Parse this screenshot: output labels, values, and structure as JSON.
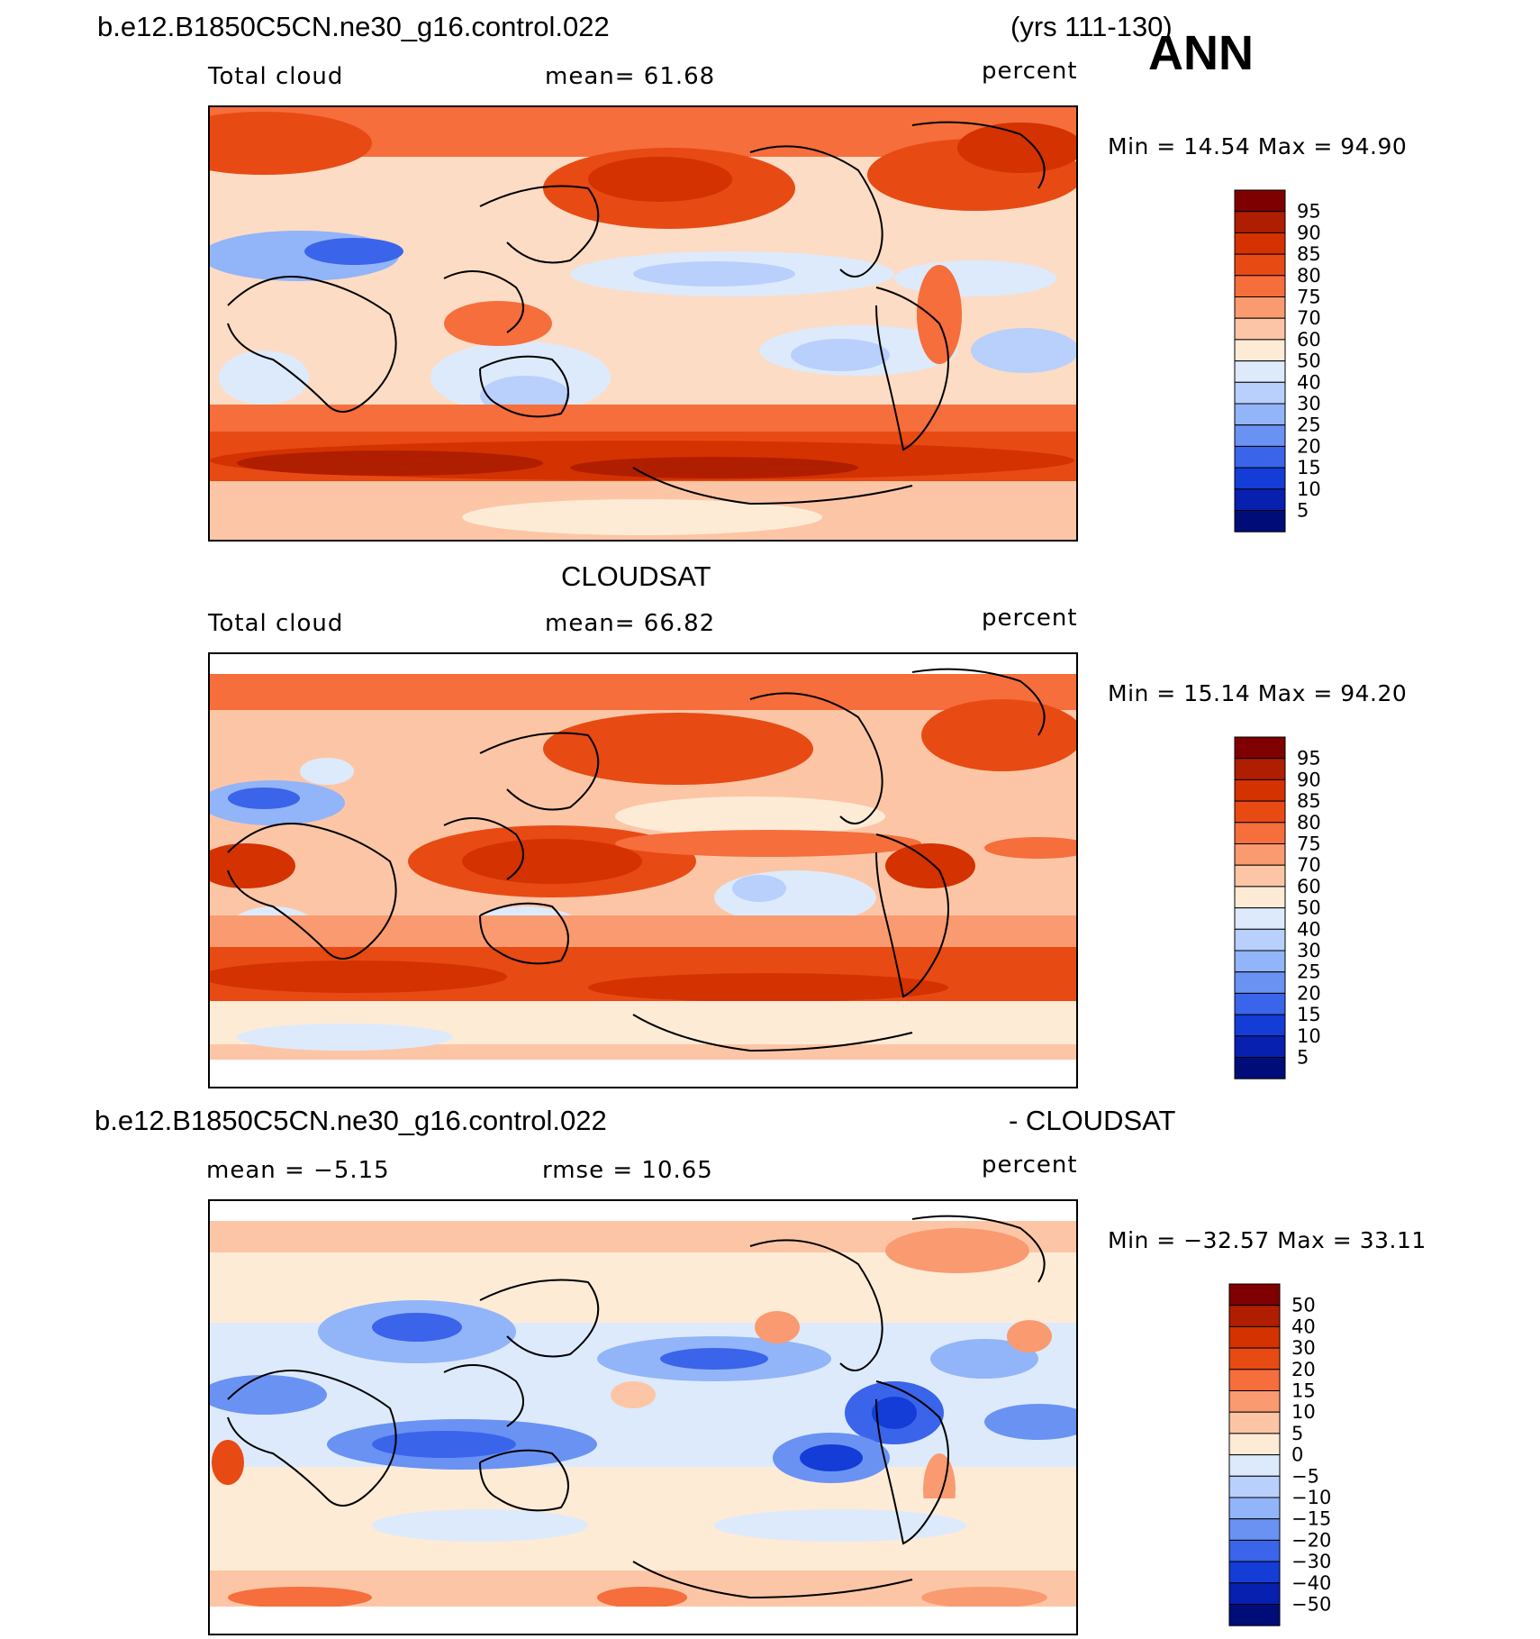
{
  "header": {
    "case_name": "b.e12.B1850C5CN.ne30_g16.control.022",
    "years": "(yrs 111-130)",
    "season": "ANN"
  },
  "panels": [
    {
      "id": "model",
      "title": "",
      "variable": "Total cloud",
      "stat_text": "mean=   61.68",
      "units": "percent",
      "minmax": "Min  =    14.54  Max  =    94.90",
      "colorbar": {
        "labels": [
          "95",
          "90",
          "85",
          "80",
          "75",
          "70",
          "60",
          "50",
          "40",
          "30",
          "25",
          "20",
          "15",
          "10",
          "5"
        ],
        "colors": [
          "#7f0000",
          "#b01e00",
          "#d43200",
          "#e84a14",
          "#f56e3c",
          "#fa9a70",
          "#fcc6a6",
          "#fdebd6",
          "#ddeafc",
          "#b8d0fb",
          "#92b4f8",
          "#6a92f3",
          "#3a64ea",
          "#143cd7",
          "#0820b0",
          "#000d78"
        ]
      }
    },
    {
      "id": "obs",
      "title": "CLOUDSAT",
      "variable": "Total cloud",
      "stat_text": "mean=   66.82",
      "units": "percent",
      "minmax": "Min  =    15.14  Max  =    94.20",
      "colorbar": {
        "labels": [
          "95",
          "90",
          "85",
          "80",
          "75",
          "70",
          "60",
          "50",
          "40",
          "30",
          "25",
          "20",
          "15",
          "10",
          "5"
        ],
        "colors": [
          "#7f0000",
          "#b01e00",
          "#d43200",
          "#e84a14",
          "#f56e3c",
          "#fa9a70",
          "#fcc6a6",
          "#fdebd6",
          "#ddeafc",
          "#b8d0fb",
          "#92b4f8",
          "#6a92f3",
          "#3a64ea",
          "#143cd7",
          "#0820b0",
          "#000d78"
        ]
      }
    },
    {
      "id": "diff",
      "title_left": "b.e12.B1850C5CN.ne30_g16.control.022",
      "title_right": "- CLOUDSAT",
      "stat_left": "mean  =   −5.15",
      "stat_right": "rmse  =    10.65",
      "units": "percent",
      "minmax": "Min  = −32.57  Max  =    33.11",
      "colorbar": {
        "labels": [
          "50",
          "40",
          "30",
          "20",
          "15",
          "10",
          "5",
          "0",
          "−5",
          "−10",
          "−15",
          "−20",
          "−30",
          "−40",
          "−50"
        ],
        "colors": [
          "#7f0000",
          "#b01e00",
          "#d43200",
          "#e84a14",
          "#f56e3c",
          "#fa9a70",
          "#fcc6a6",
          "#fdebd6",
          "#ddeafc",
          "#b8d0fb",
          "#92b4f8",
          "#6a92f3",
          "#3a64ea",
          "#143cd7",
          "#0820b0",
          "#000d78"
        ]
      }
    }
  ]
}
